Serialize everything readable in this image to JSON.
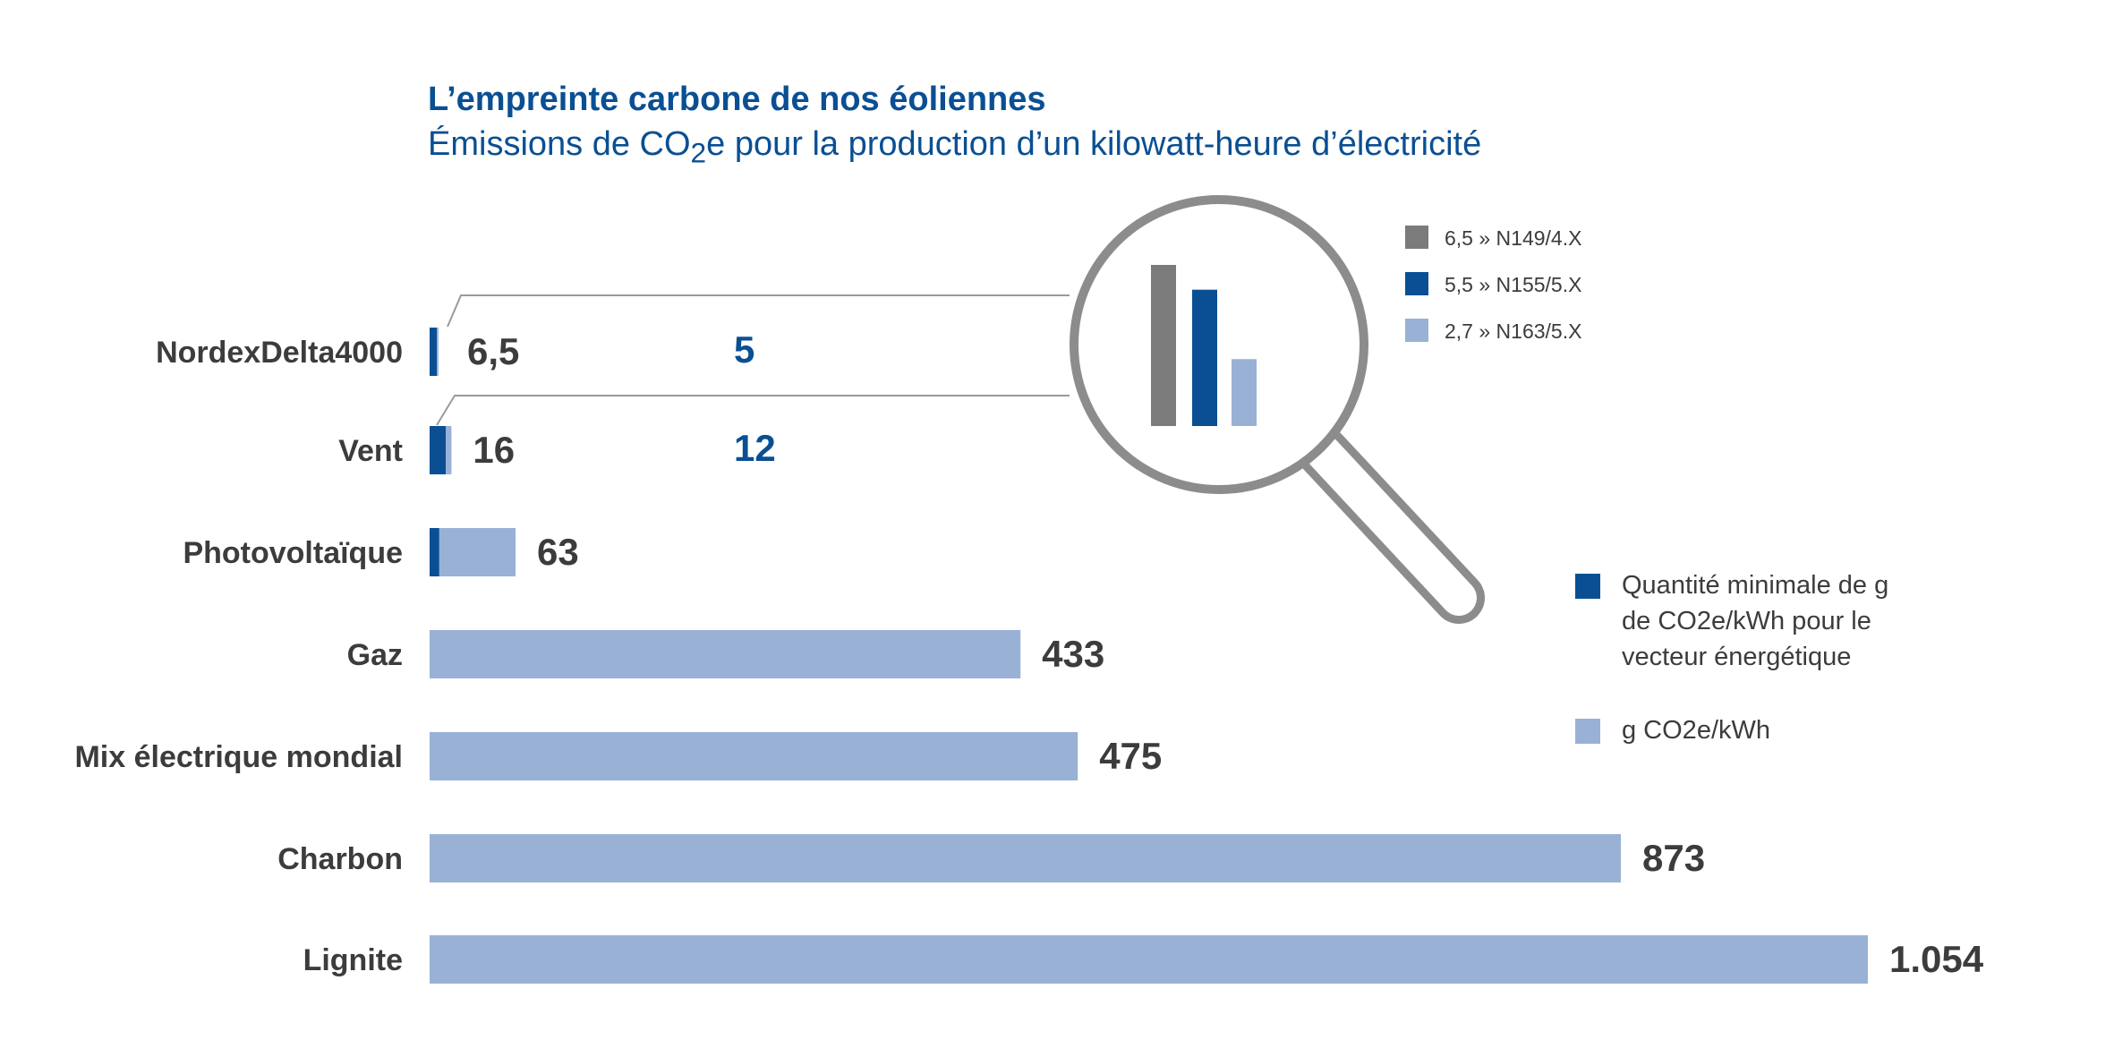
{
  "colors": {
    "dark_blue": "#0a4f93",
    "light_blue": "#9ab1d6",
    "gray": "#7b7b7b",
    "text_dark": "#3c3c3c",
    "lens_gray": "#8c8c8c"
  },
  "chart_data": {
    "type": "bar",
    "orientation": "horizontal",
    "title": "L’empreinte carbone de nos éoliennes",
    "subtitle_pre": "Émissions de CO",
    "subtitle_sub": "2",
    "subtitle_post": "e pour la production d’un kilowatt-heure d’électricité",
    "categories": [
      "NordexDelta4000",
      "Vent",
      "Photovoltaïque",
      "Gaz",
      "Mix électrique mondial",
      "Charbon",
      "Lignite"
    ],
    "series": [
      {
        "color": "#9ab1d6",
        "values": [
          6.5,
          16,
          63,
          433,
          475,
          873,
          1054
        ],
        "labels": [
          "6,5",
          "16",
          "63",
          "433",
          "475",
          "873",
          "1.054"
        ]
      },
      {
        "color": "#0a4f93",
        "values": [
          5,
          12,
          7,
          null,
          null,
          null,
          null
        ],
        "labels": [
          "5",
          "12",
          "",
          "",
          "",
          "",
          ""
        ]
      }
    ],
    "legend": {
      "position": "right",
      "items": [
        {
          "color": "#0a4f93",
          "lines": [
            "Quantité minimale de g",
            "de CO2e/kWh pour le",
            "vecteur énergétique"
          ]
        },
        {
          "color": "#9ab1d6",
          "lines": [
            "g CO2e/kWh"
          ]
        }
      ]
    },
    "inset": {
      "description": "magnifier",
      "bars": [
        {
          "value": 6.5,
          "label": "6,5 » N149/4.X",
          "color": "#7b7b7b"
        },
        {
          "value": 5.5,
          "label": "5,5 » N155/5.X",
          "color": "#0a4f93"
        },
        {
          "value": 2.7,
          "label": "2,7 » N163/5.X",
          "color": "#9ab1d6"
        }
      ]
    }
  }
}
